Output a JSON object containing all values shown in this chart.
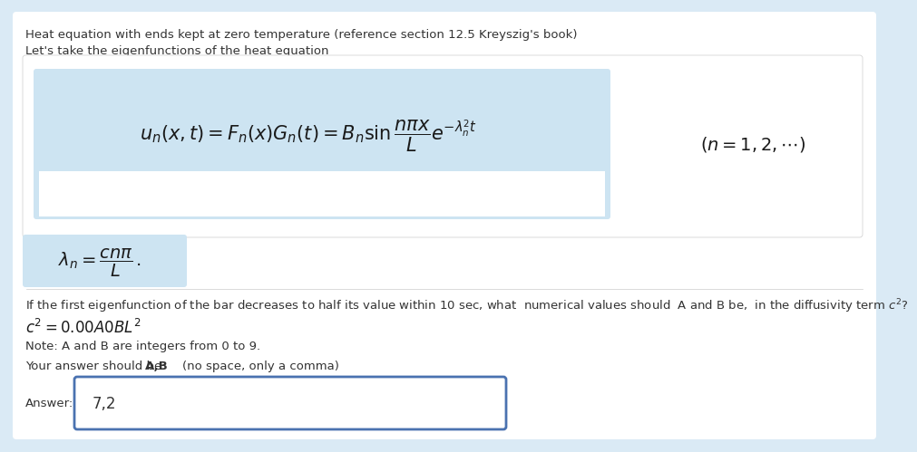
{
  "bg_color": "#daeaf5",
  "white_box_color": "#ffffff",
  "formula_box_color": "#cde4f2",
  "answer_border_color": "#4a72b0",
  "title_line1": "Heat equation with ends kept at zero temperature (reference section 12.5 Kreyszig's book)",
  "title_line2": "Let's take the eigenfunctions of the heat equation",
  "main_formula": "$u_n(x, t) = F_n(x)G_n(t) = B_n \\sin \\dfrac{n\\pi x}{L} e^{-\\lambda_n^2 t}$",
  "side_condition": "$(n = 1, 2, \\cdots)$",
  "lambda_formula": "$\\lambda_n = \\dfrac{cn\\pi}{L}\\,.$",
  "question_text": "If the first eigenfunction of the bar decreases to half its value within 10 sec, what  numerical values should  A and B be,  in the diffusivity term $c^2$?",
  "c2_formula": "$c^2 = 0.00A0BL^2$",
  "note_text": "Note: A and B are integers from 0 to 9.",
  "answer_prompt_plain": "Your answer should be:  ",
  "answer_bold": "A,B",
  "answer_paren": "    (no space, only a comma)",
  "answer_label": "Answer:",
  "answer_value": "7,2",
  "font_size_title": 9.5,
  "font_size_body": 9.5,
  "font_size_formula": 15,
  "font_size_lambda": 14,
  "font_size_side": 14,
  "font_size_c2": 12,
  "font_size_answer_val": 12
}
